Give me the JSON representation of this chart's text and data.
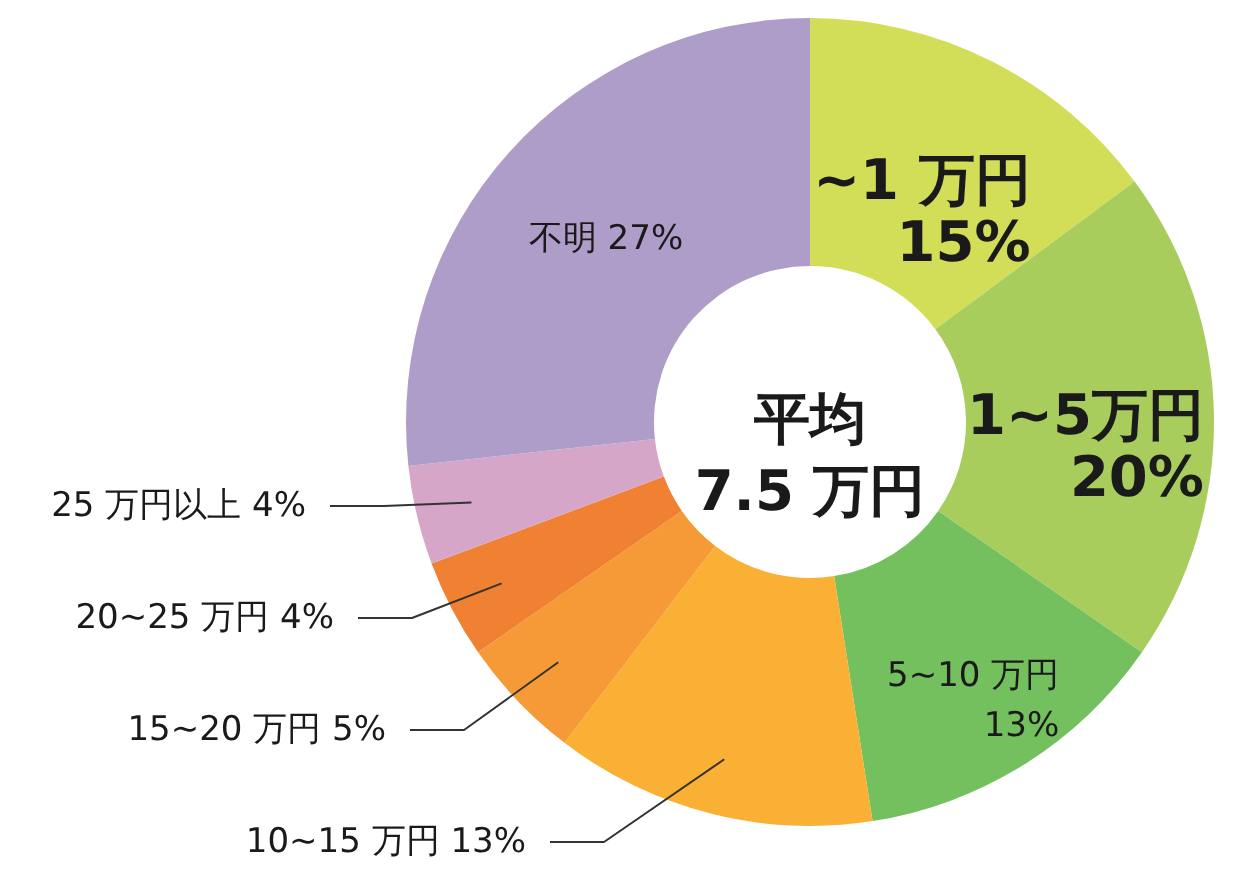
{
  "chart_data": {
    "type": "donut",
    "categories": [
      "~1 万円",
      "1~5万円",
      "5~10 万円",
      "10~15 万円",
      "15~20 万円",
      "20~25 万円",
      "25 万円以上",
      "不明"
    ],
    "values": [
      15,
      20,
      13,
      13,
      5,
      4,
      4,
      27
    ],
    "colors": [
      "#d3de58",
      "#a8cd5c",
      "#74bf5e",
      "#f9b034",
      "#f59a36",
      "#f08133",
      "#d6a6c9",
      "#ae9dc9"
    ],
    "value_labels": [
      "15%",
      "20%",
      "13%",
      "13%",
      "5%",
      "4%",
      "4%",
      "27%"
    ],
    "annotations": [
      "平均\n7.5 万円"
    ]
  }
}
